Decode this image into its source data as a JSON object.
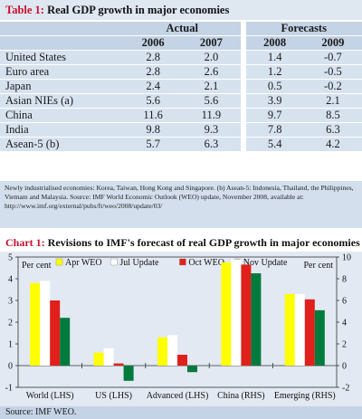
{
  "table": {
    "tag": "Table 1:",
    "title": "Real GDP growth in major economies",
    "group_actual": "Actual",
    "group_forecasts": "Forecasts",
    "years": [
      "2006",
      "2007",
      "2008",
      "2009"
    ],
    "rows": [
      {
        "label": "United States",
        "values": [
          "2.8",
          "2.0",
          "1.4",
          "-0.7"
        ]
      },
      {
        "label": "Euro area",
        "values": [
          "2.8",
          "2.6",
          "1.2",
          "-0.5"
        ]
      },
      {
        "label": "Japan",
        "values": [
          "2.4",
          "2.1",
          "0.5",
          "-0.2"
        ]
      },
      {
        "label": "Asian NIEs (a)",
        "values": [
          "5.6",
          "5.6",
          "3.9",
          "2.1"
        ]
      },
      {
        "label": "China",
        "values": [
          "11.6",
          "11.9",
          "9.7",
          "8.5"
        ]
      },
      {
        "label": "India",
        "values": [
          "9.8",
          "9.3",
          "7.8",
          "6.3"
        ]
      },
      {
        "label": "Asean-5 (b)",
        "values": [
          "5.7",
          "6.3",
          "5.4",
          "4.2"
        ]
      }
    ],
    "note": "Newly industrialised economies: Korea, Taiwan, Hong Kong and Singapore. (b) Asean-5: Indonesia, Thailand, the Philippines, Vietnam and Malaysia. Source: IMF World Economic Outlook (WEO) update, November 2008, available at: http://www.imf.org/external/pubs/ft/weo/2008/update/03/"
  },
  "chart_data": {
    "type": "bar",
    "tag": "Chart 1:",
    "title": "Revisions to IMF's forecast of real GDP growth in major economies",
    "left_axis_label": "Per cent",
    "right_axis_label": "Per cent",
    "left_ylim": [
      -1,
      5
    ],
    "right_ylim": [
      -2,
      10
    ],
    "left_ticks": [
      "5",
      "4",
      "3",
      "2",
      "1",
      "0",
      "-1"
    ],
    "right_ticks": [
      "10",
      "8",
      "6",
      "4",
      "2",
      "0",
      "-2"
    ],
    "categories": [
      "World (LHS)",
      "US (LHS)",
      "Advanced (LHS)",
      "China (RHS)",
      "Emerging (RHS)"
    ],
    "category_axis": [
      "left",
      "left",
      "left",
      "right",
      "right"
    ],
    "legend_position": "top",
    "series": [
      {
        "name": "Apr WEO",
        "color": "#ffff00",
        "values": [
          3.8,
          0.6,
          1.3,
          9.5,
          6.6
        ]
      },
      {
        "name": "Jul Update",
        "color": "#ffffff",
        "values": [
          3.9,
          0.8,
          1.4,
          9.8,
          6.6
        ]
      },
      {
        "name": "Oct WEO",
        "color": "#e0201b",
        "values": [
          3.0,
          0.1,
          0.5,
          9.3,
          6.1
        ]
      },
      {
        "name": "Nov Update",
        "color": "#007a3d",
        "values": [
          2.2,
          -0.7,
          -0.3,
          8.5,
          5.1
        ]
      }
    ],
    "source": "Source: IMF WEO."
  }
}
